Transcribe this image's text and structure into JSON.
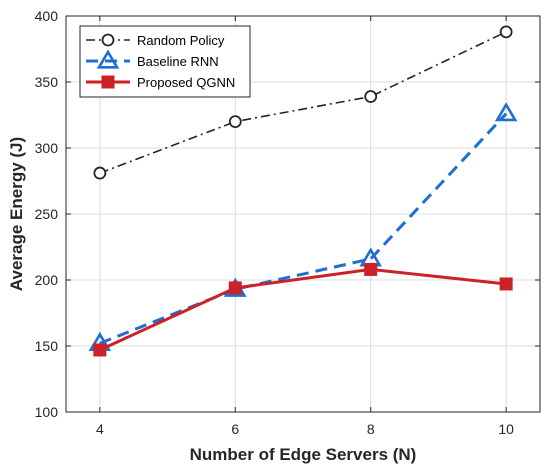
{
  "chart_data": {
    "type": "line",
    "title": "",
    "xlabel": "Number of Edge Servers (N)",
    "ylabel": "Average Energy (J)",
    "x": [
      4,
      6,
      8,
      10
    ],
    "xlim": [
      3.5,
      10.5
    ],
    "ylim": [
      100,
      400
    ],
    "xticks": [
      4,
      6,
      8,
      10
    ],
    "yticks": [
      100,
      150,
      200,
      250,
      300,
      350,
      400
    ],
    "grid": true,
    "legend_position": "top-left",
    "series": [
      {
        "name": "Random Policy",
        "values": [
          281,
          320,
          339,
          388
        ],
        "color": "#262626",
        "line_style": "dash-dot",
        "marker": "circle"
      },
      {
        "name": "Baseline RNN",
        "values": [
          152,
          193,
          216,
          326
        ],
        "color": "#1f6fd1",
        "line_style": "dashed",
        "marker": "triangle"
      },
      {
        "name": "Proposed QGNN",
        "values": [
          147,
          194,
          208,
          197
        ],
        "color": "#cc2126",
        "line_style": "solid",
        "marker": "square"
      }
    ]
  }
}
